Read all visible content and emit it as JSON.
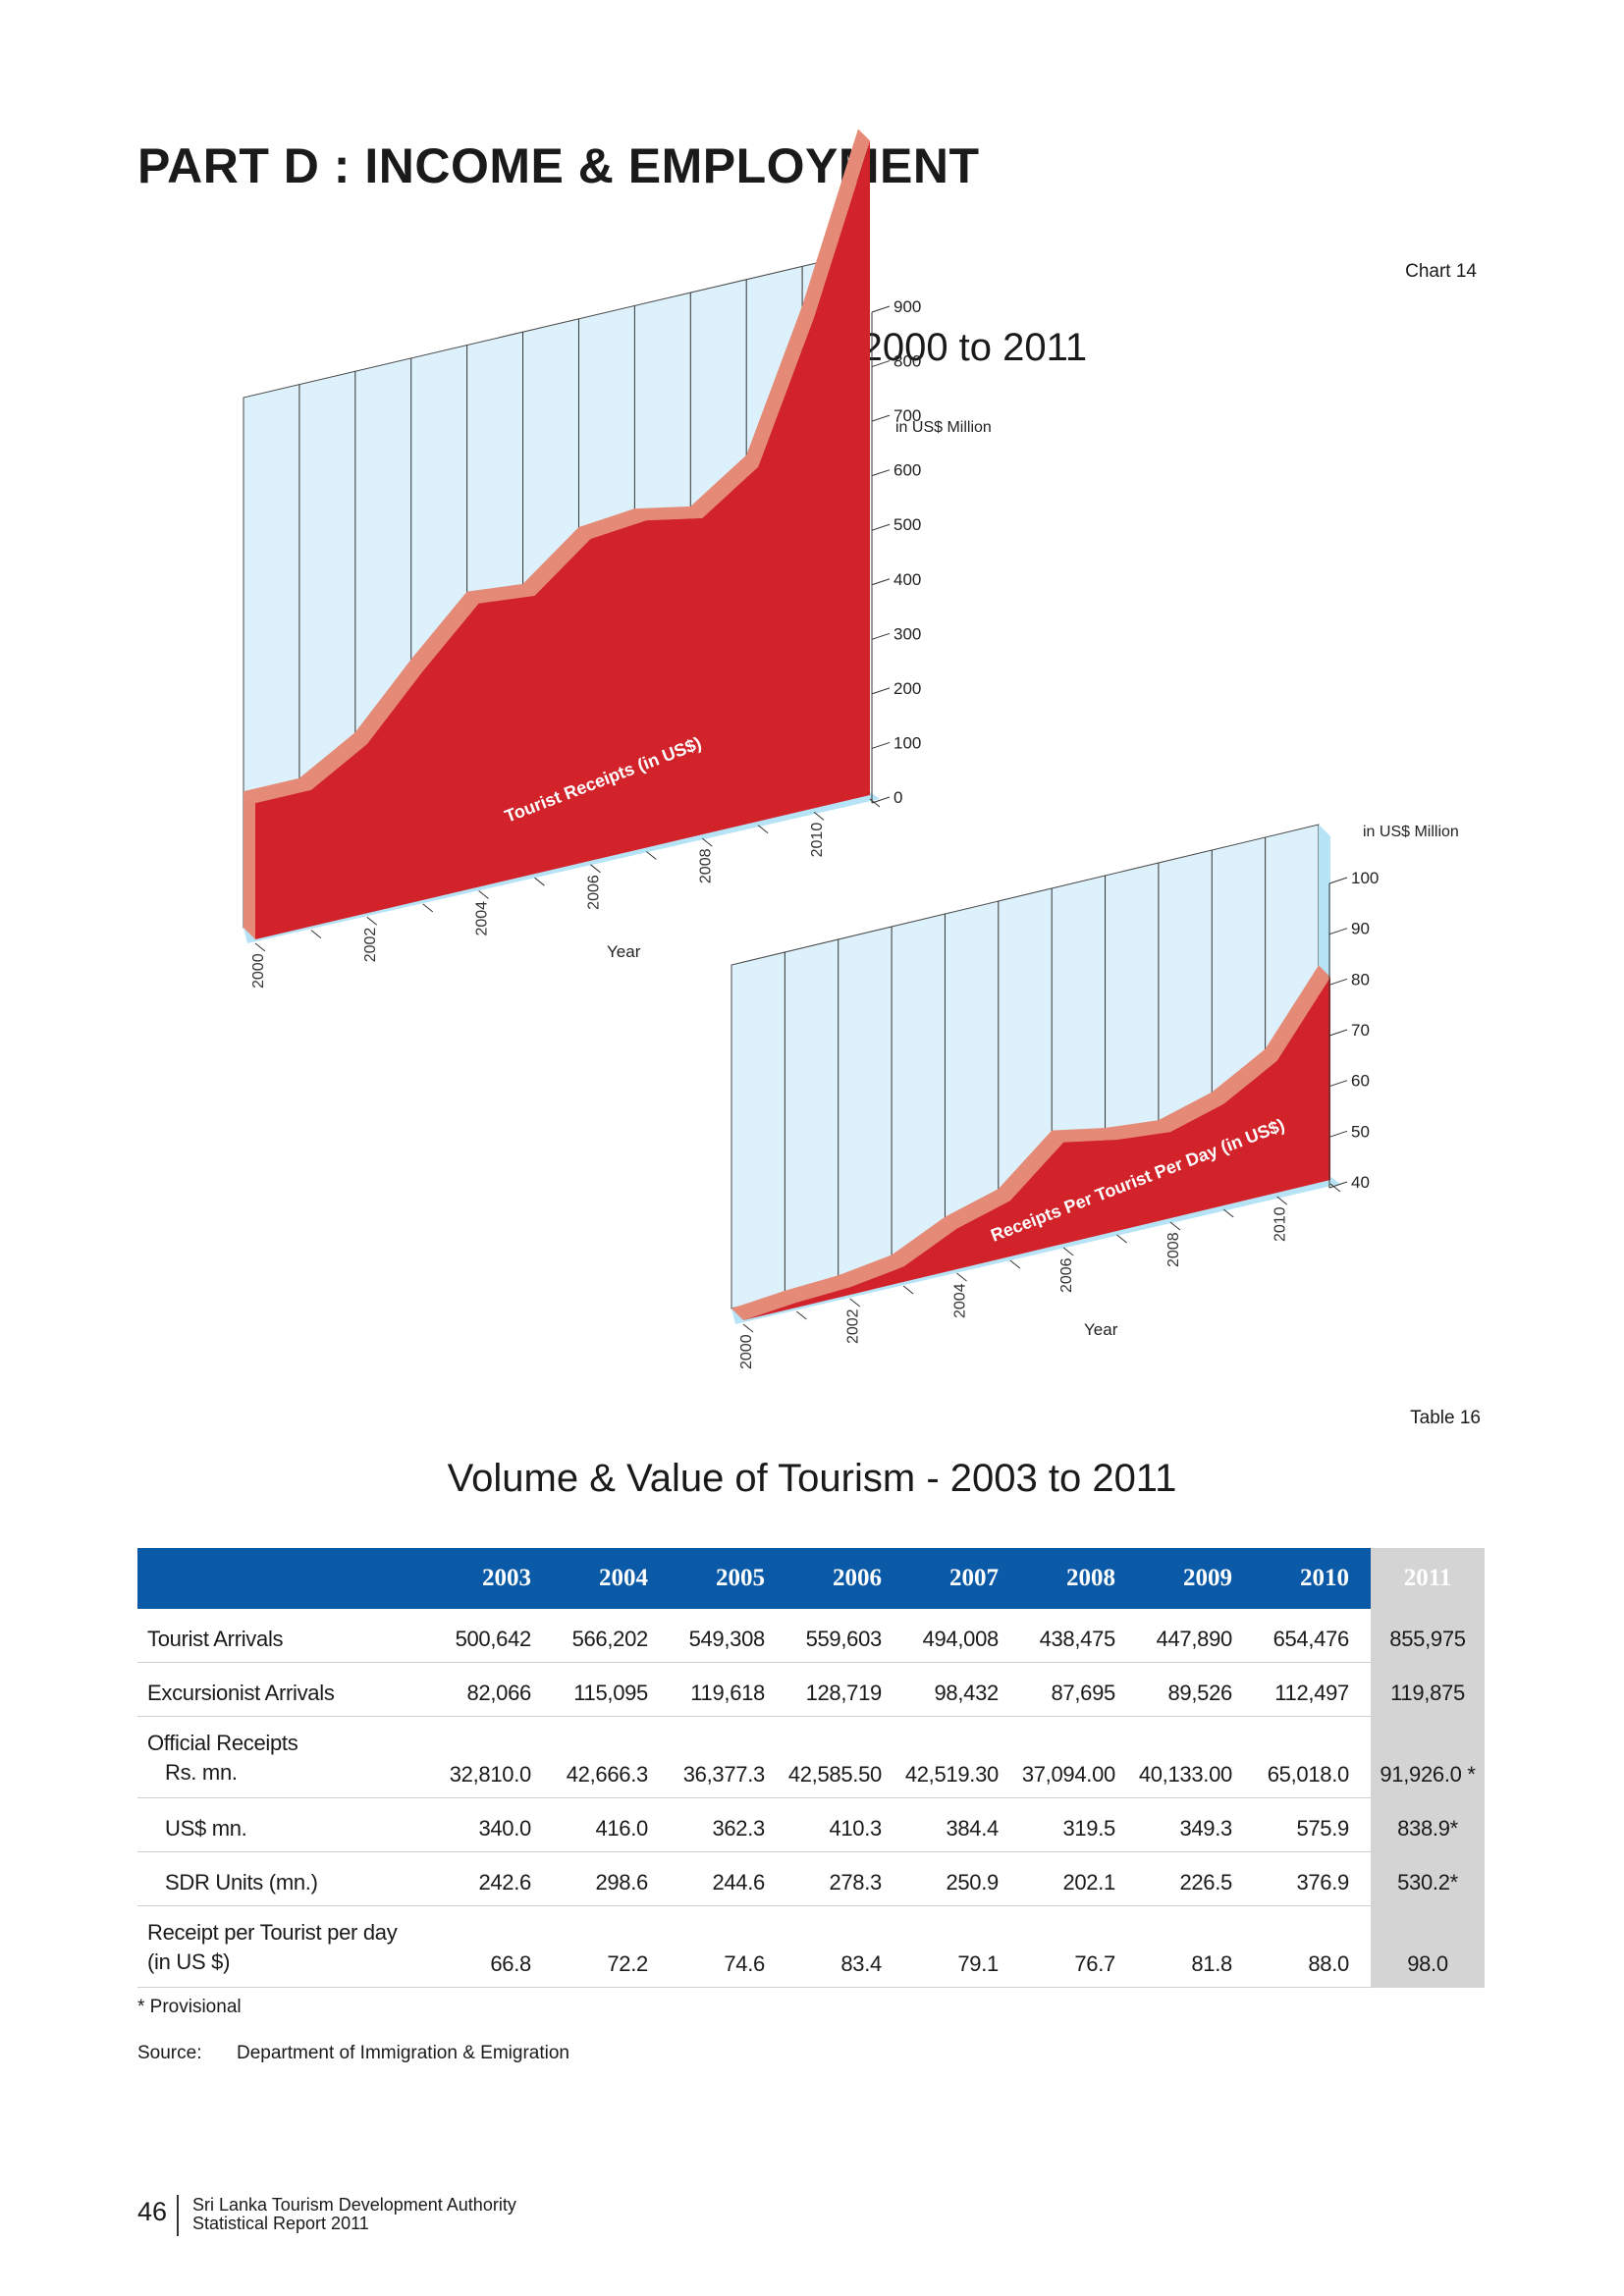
{
  "page": {
    "part_title": "PART D : INCOME & EMPLOYMENT",
    "chart_number": "Chart 14",
    "chart_title": "Value of Tourism - 2000 to 2011",
    "table_number": "Table 16",
    "table_title": "Volume & Value of Tourism - 2003 to 2011",
    "footnote": "* Provisional",
    "source_label": "Source:",
    "source_text": "Department of Immigration & Emigration",
    "page_number": "46",
    "org_line1": "Sri Lanka Tourism Development Authority",
    "org_line2": "Statistical Report 2011"
  },
  "colors": {
    "fill": "#d2232a",
    "edge": "#e58a76",
    "wall": "#dcf1fb",
    "floor": "#b7e3f7",
    "header": "#0b5aa8",
    "highlight": "#d4d4d4"
  },
  "chart_data": [
    {
      "type": "area",
      "unit_label": "in US$ Million",
      "series_label": "Tourist Receipts (in US$)",
      "xlabel": "Year",
      "x": [
        2000,
        2001,
        2002,
        2003,
        2004,
        2005,
        2006,
        2007,
        2008,
        2009,
        2010,
        2011
      ],
      "x_tick_labels": [
        "2000",
        "2002",
        "2004",
        "2006",
        "2008",
        "2010"
      ],
      "values": [
        250,
        250,
        310,
        420,
        520,
        510,
        590,
        600,
        580,
        650,
        900,
        1200
      ],
      "y_ticks": [
        0,
        100,
        200,
        300,
        400,
        500,
        600,
        700,
        800,
        900
      ],
      "ylim": [
        0,
        900
      ]
    },
    {
      "type": "area",
      "unit_label": "in US$ Million",
      "series_label": "Receipts Per Tourist  Per Day  (in US$)",
      "xlabel": "Year",
      "x": [
        2000,
        2001,
        2002,
        2003,
        2004,
        2005,
        2006,
        2007,
        2008,
        2009,
        2010,
        2011
      ],
      "x_tick_labels": [
        "2000",
        "2002",
        "2004",
        "2006",
        "2008",
        "2010"
      ],
      "values": [
        40,
        41,
        41.5,
        43,
        48,
        51,
        60,
        58,
        57,
        60,
        66,
        80
      ],
      "y_ticks": [
        40,
        50,
        60,
        70,
        80,
        90,
        100
      ],
      "ylim": [
        40,
        100
      ]
    }
  ],
  "table": {
    "years": [
      "2003",
      "2004",
      "2005",
      "2006",
      "2007",
      "2008",
      "2009",
      "2010",
      "2011"
    ],
    "rows": [
      {
        "label": "Tourist Arrivals",
        "values": [
          "500,642",
          "566,202",
          "549,308",
          "559,603",
          "494,008",
          "438,475",
          "447,890",
          "654,476",
          "855,975"
        ]
      },
      {
        "label": "Excursionist Arrivals",
        "values": [
          "82,066",
          "115,095",
          "119,618",
          "128,719",
          "98,432",
          "87,695",
          "89,526",
          "112,497",
          "119,875"
        ]
      },
      {
        "label": "Official Receipts",
        "label2": "Rs. mn.",
        "values": [
          "32,810.0",
          "42,666.3",
          "36,377.3",
          "42,585.50",
          "42,519.30",
          "37,094.00",
          "40,133.00",
          "65,018.0",
          "91,926.0 *"
        ]
      },
      {
        "label": "US$ mn.",
        "values": [
          "340.0",
          "416.0",
          "362.3",
          "410.3",
          "384.4",
          "319.5",
          "349.3",
          "575.9",
          "838.9*"
        ]
      },
      {
        "label": "SDR Units (mn.)",
        "values": [
          "242.6",
          "298.6",
          "244.6",
          "278.3",
          "250.9",
          "202.1",
          "226.5",
          "376.9",
          "530.2*"
        ]
      },
      {
        "label": "Receipt per Tourist per day",
        "label2": "(in US $)",
        "values": [
          "66.8",
          "72.2",
          "74.6",
          "83.4",
          "79.1",
          "76.7",
          "81.8",
          "88.0",
          "98.0"
        ]
      }
    ]
  }
}
